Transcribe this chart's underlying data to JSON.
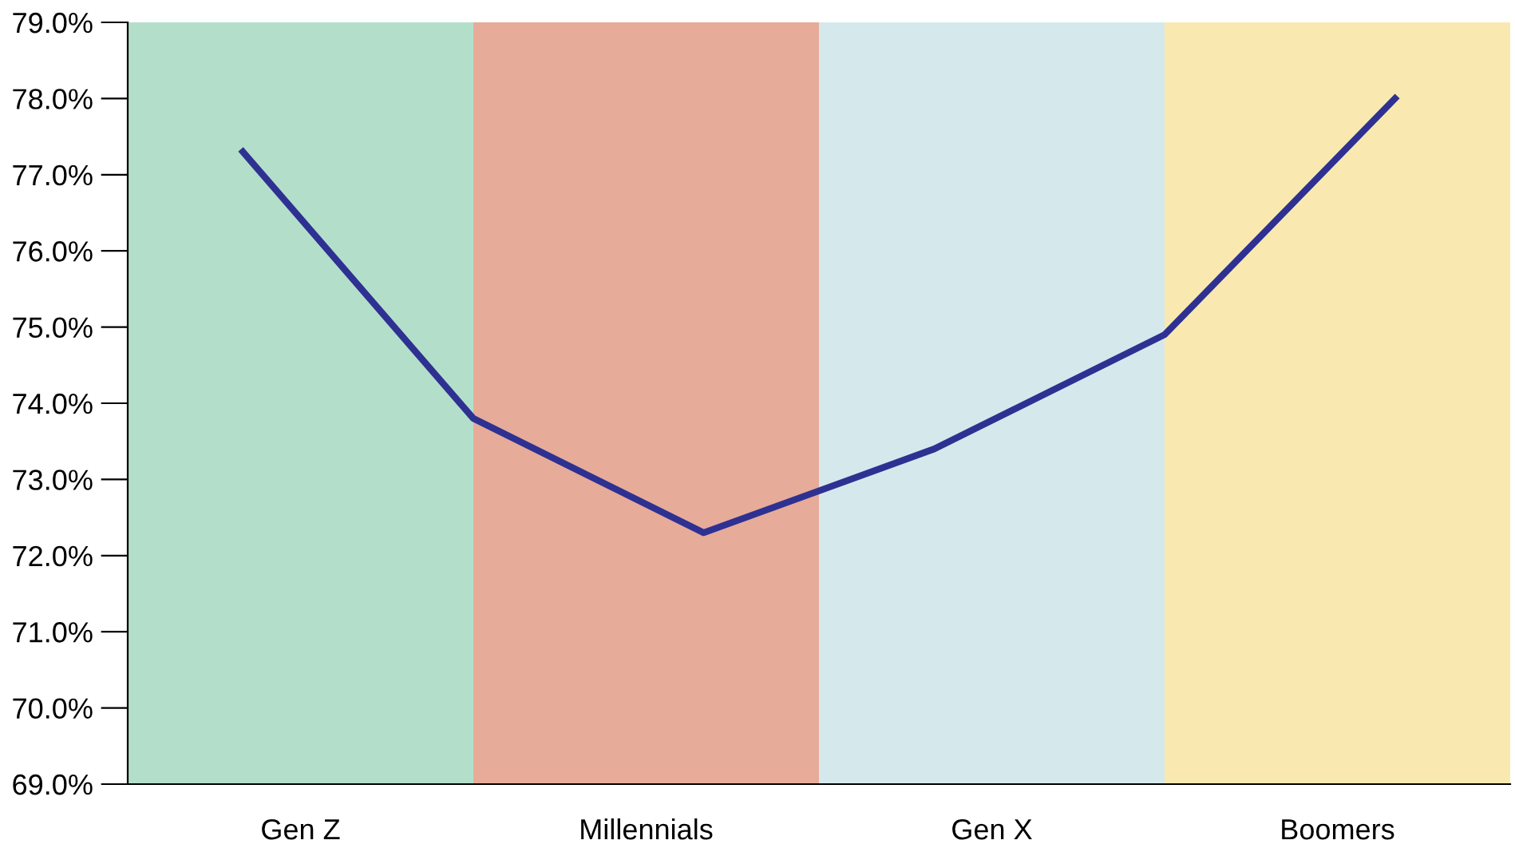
{
  "chart_data": {
    "type": "line",
    "categories": [
      null,
      null,
      null,
      null,
      null,
      null
    ],
    "series": [
      {
        "color": "#2e3192",
        "values": [
          77.3,
          73.8,
          72.3,
          73.4,
          74.9,
          78.0
        ]
      }
    ],
    "ylim": [
      69,
      79
    ],
    "yticks": [
      {
        "value": 69,
        "label": "69.0%"
      },
      {
        "value": 70,
        "label": "70.0%"
      },
      {
        "value": 71,
        "label": "71.0%"
      },
      {
        "value": 72,
        "label": "72.0%"
      },
      {
        "value": 73,
        "label": "73.0%"
      },
      {
        "value": 74,
        "label": "74.0%"
      },
      {
        "value": 75,
        "label": "75.0%"
      },
      {
        "value": 76,
        "label": "76.0%"
      },
      {
        "value": 77,
        "label": "77.0%"
      },
      {
        "value": 78,
        "label": "78.0%"
      },
      {
        "value": 79,
        "label": "79.0%"
      }
    ],
    "annotations": [
      "Gen Z",
      "Millennials",
      "Gen X",
      "Boomers"
    ],
    "tick_labels": "y",
    "grid": false,
    "marker": "none",
    "line_style": "solid"
  }
}
